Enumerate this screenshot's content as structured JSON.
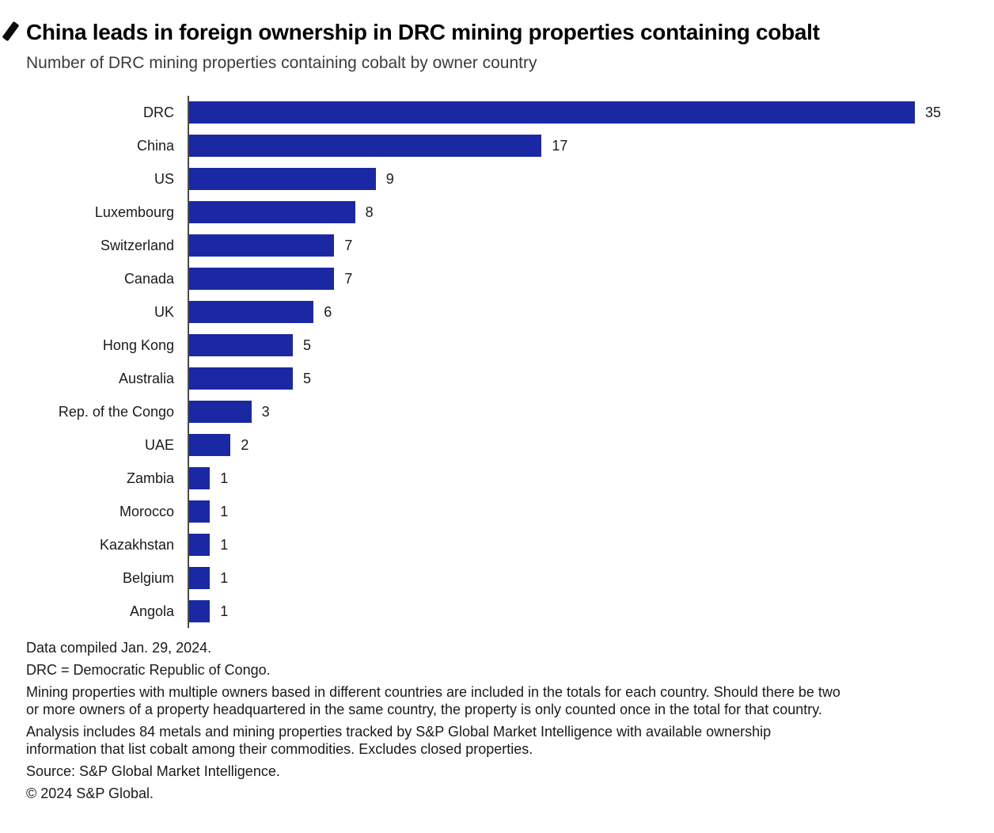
{
  "header": {
    "title": "China leads in foreign ownership in DRC mining properties containing cobalt",
    "subtitle": "Number of DRC mining properties containing cobalt by owner country"
  },
  "chart_data": {
    "type": "bar",
    "orientation": "horizontal",
    "title": "China leads in foreign ownership in DRC mining properties containing cobalt",
    "subtitle": "Number of DRC mining properties containing cobalt by owner country",
    "categories": [
      "DRC",
      "China",
      "US",
      "Luxembourg",
      "Switzerland",
      "Canada",
      "UK",
      "Hong Kong",
      "Australia",
      "Rep. of the Congo",
      "UAE",
      "Zambia",
      "Morocco",
      "Kazakhstan",
      "Belgium",
      "Angola"
    ],
    "values": [
      35,
      17,
      9,
      8,
      7,
      7,
      6,
      5,
      5,
      3,
      2,
      1,
      1,
      1,
      1,
      1
    ],
    "xlabel": "",
    "ylabel": "",
    "xlim": [
      0,
      35
    ],
    "grid": false,
    "legend": false,
    "value_labels_shown": true,
    "bar_color": "#1b28a3",
    "axis_color": "#4a4a4a"
  },
  "footnotes": {
    "lines": [
      "Data compiled Jan. 29, 2024.",
      "DRC = Democratic Republic of Congo.",
      "Mining properties with multiple owners based in different countries are included in the totals for each country. Should there be two\nor more owners of a property headquartered in the same country, the property is only counted once in the total for that country.",
      "Analysis includes 84 metals and mining properties tracked by S&P Global Market Intelligence with available ownership\ninformation that list cobalt among their commodities. Excludes closed properties.",
      "Source: S&P Global Market Intelligence.",
      "© 2024 S&P Global."
    ]
  },
  "icons": {
    "corner_mark": "cursor-artifact"
  }
}
